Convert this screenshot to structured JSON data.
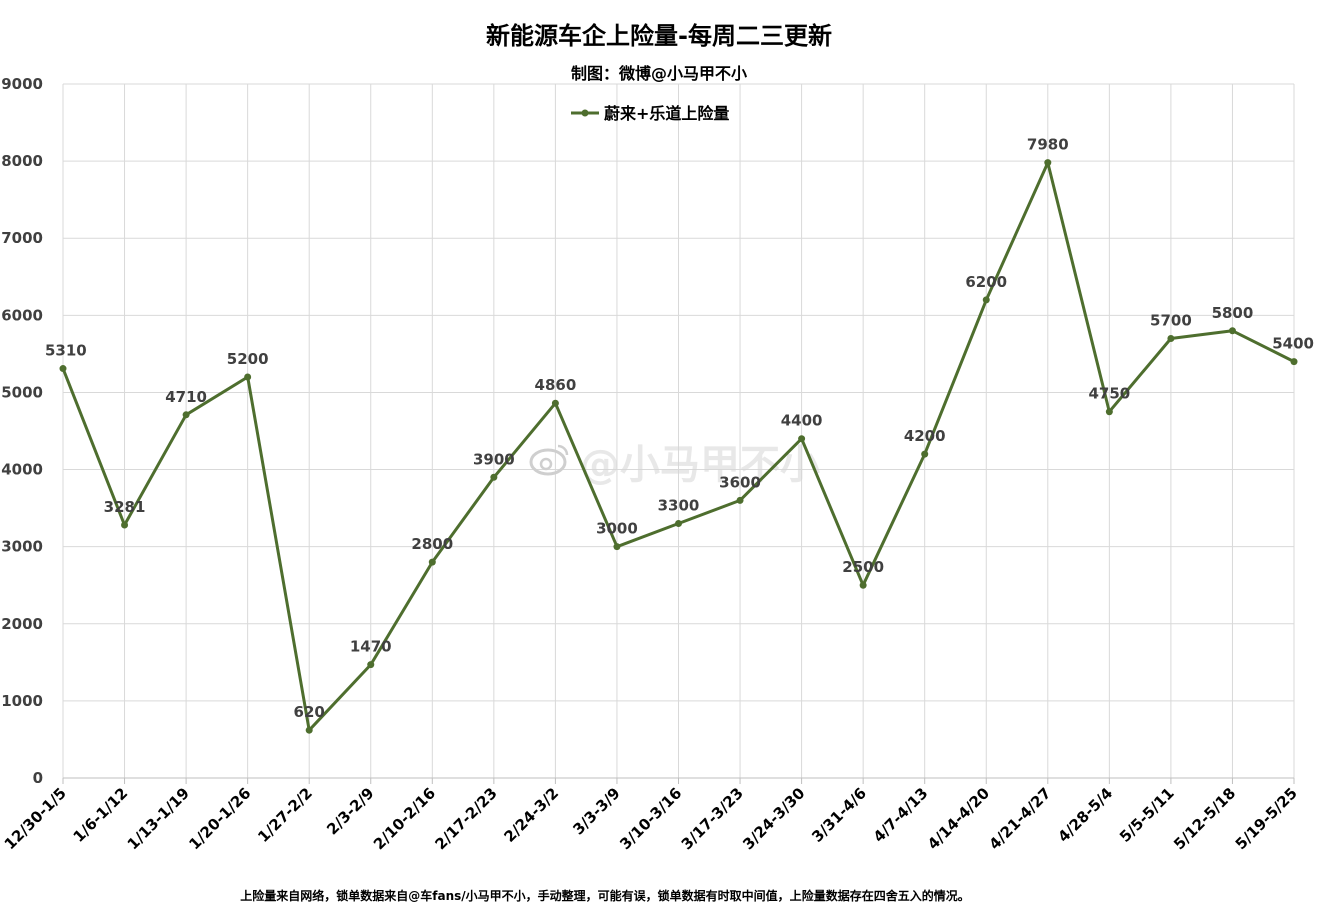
{
  "chart_data": {
    "type": "line",
    "title": "新能源车企上险量-每周二三更新",
    "subtitle": "制图：微博@小马甲不小",
    "categories": [
      "12/30-1/5",
      "1/6-1/12",
      "1/13-1/19",
      "1/20-1/26",
      "1/27-2/2",
      "2/3-2/9",
      "2/10-2/16",
      "2/17-2/23",
      "2/24-3/2",
      "3/3-3/9",
      "3/10-3/16",
      "3/17-3/23",
      "3/24-3/30",
      "3/31-4/6",
      "4/7-4/13",
      "4/14-4/20",
      "4/21-4/27",
      "4/28-5/4",
      "5/5-5/11",
      "5/12-5/18",
      "5/19-5/25"
    ],
    "series": [
      {
        "name": "蔚来+乐道上险量",
        "values": [
          5310,
          3281,
          4710,
          5200,
          620,
          1470,
          2800,
          3900,
          4860,
          3000,
          3300,
          3600,
          4400,
          2500,
          4200,
          6200,
          7980,
          4750,
          5700,
          5800,
          5400
        ]
      }
    ],
    "ylim": [
      0,
      9000
    ],
    "yticks": [
      0,
      1000,
      2000,
      3000,
      4000,
      5000,
      6000,
      7000,
      8000,
      9000
    ],
    "grid": true,
    "legend_position": "top-center",
    "line_color": "#4e6e2e",
    "footnote": "上险量来自网络，锁单数据来自@车fans/小马甲不小，手动整理，可能有误，锁单数据有时取中间值，上险量数据存在四舍五入的情况。",
    "watermark": "@小马甲不小"
  }
}
